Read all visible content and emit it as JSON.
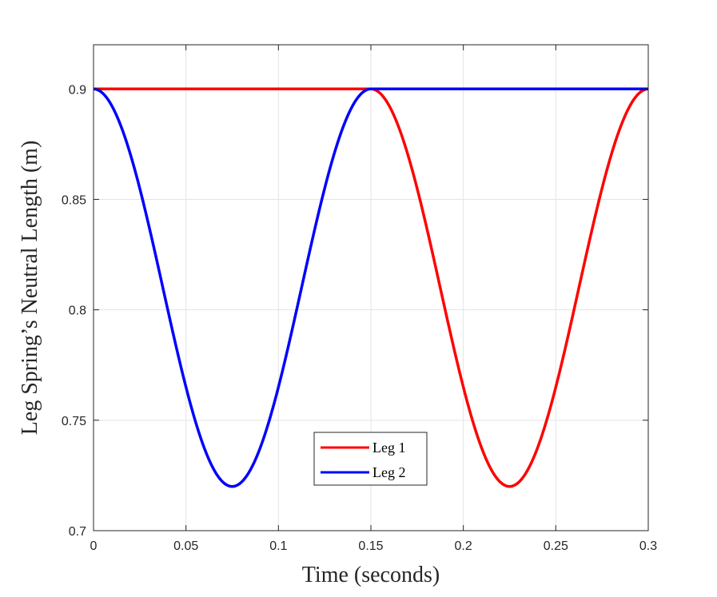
{
  "chart_data": {
    "type": "line",
    "title": "",
    "xlabel": "Time (seconds)",
    "ylabel": "Leg Spring’s Neutral Length (m)",
    "xlim": [
      0,
      0.3
    ],
    "ylim": [
      0.7,
      0.92
    ],
    "xticks": [
      0,
      0.05,
      0.1,
      0.15,
      0.2,
      0.25,
      0.3
    ],
    "xtick_labels": [
      "0",
      "0.05",
      "0.1",
      "0.15",
      "0.2",
      "0.25",
      "0.3"
    ],
    "yticks": [
      0.7,
      0.75,
      0.8,
      0.85,
      0.9
    ],
    "ytick_labels": [
      "0.7",
      "0.75",
      "0.8",
      "0.85",
      "0.9"
    ],
    "grid": true,
    "legend_position": "bottom-center",
    "series": [
      {
        "name": "Leg 1",
        "color": "#ff0000",
        "x": [
          0,
          0.15,
          0.1575,
          0.165,
          0.1725,
          0.18,
          0.1875,
          0.195,
          0.2025,
          0.21,
          0.2175,
          0.225,
          0.2325,
          0.24,
          0.2475,
          0.255,
          0.2625,
          0.27,
          0.2775,
          0.285,
          0.2925,
          0.3
        ],
        "y": [
          0.9,
          0.9,
          0.8978,
          0.8914,
          0.8813,
          0.8684,
          0.8538,
          0.8387,
          0.8242,
          0.8116,
          0.8022,
          0.72,
          0.8022,
          0.8116,
          0.8242,
          0.8387,
          0.8538,
          0.8684,
          0.8813,
          0.8914,
          0.8978,
          0.9
        ]
      },
      {
        "name": "Leg 2",
        "color": "#0000ff",
        "x": [
          0,
          0.0075,
          0.015,
          0.0225,
          0.03,
          0.0375,
          0.045,
          0.0525,
          0.06,
          0.0675,
          0.075,
          0.0825,
          0.09,
          0.0975,
          0.105,
          0.1125,
          0.12,
          0.1275,
          0.135,
          0.1425,
          0.15,
          0.3
        ],
        "y": [
          0.9,
          0.8978,
          0.8914,
          0.8813,
          0.8684,
          0.8538,
          0.8387,
          0.8242,
          0.8116,
          0.8022,
          0.72,
          0.8022,
          0.8116,
          0.8242,
          0.8387,
          0.8538,
          0.8684,
          0.8813,
          0.8914,
          0.8978,
          0.9,
          0.9
        ]
      }
    ]
  }
}
